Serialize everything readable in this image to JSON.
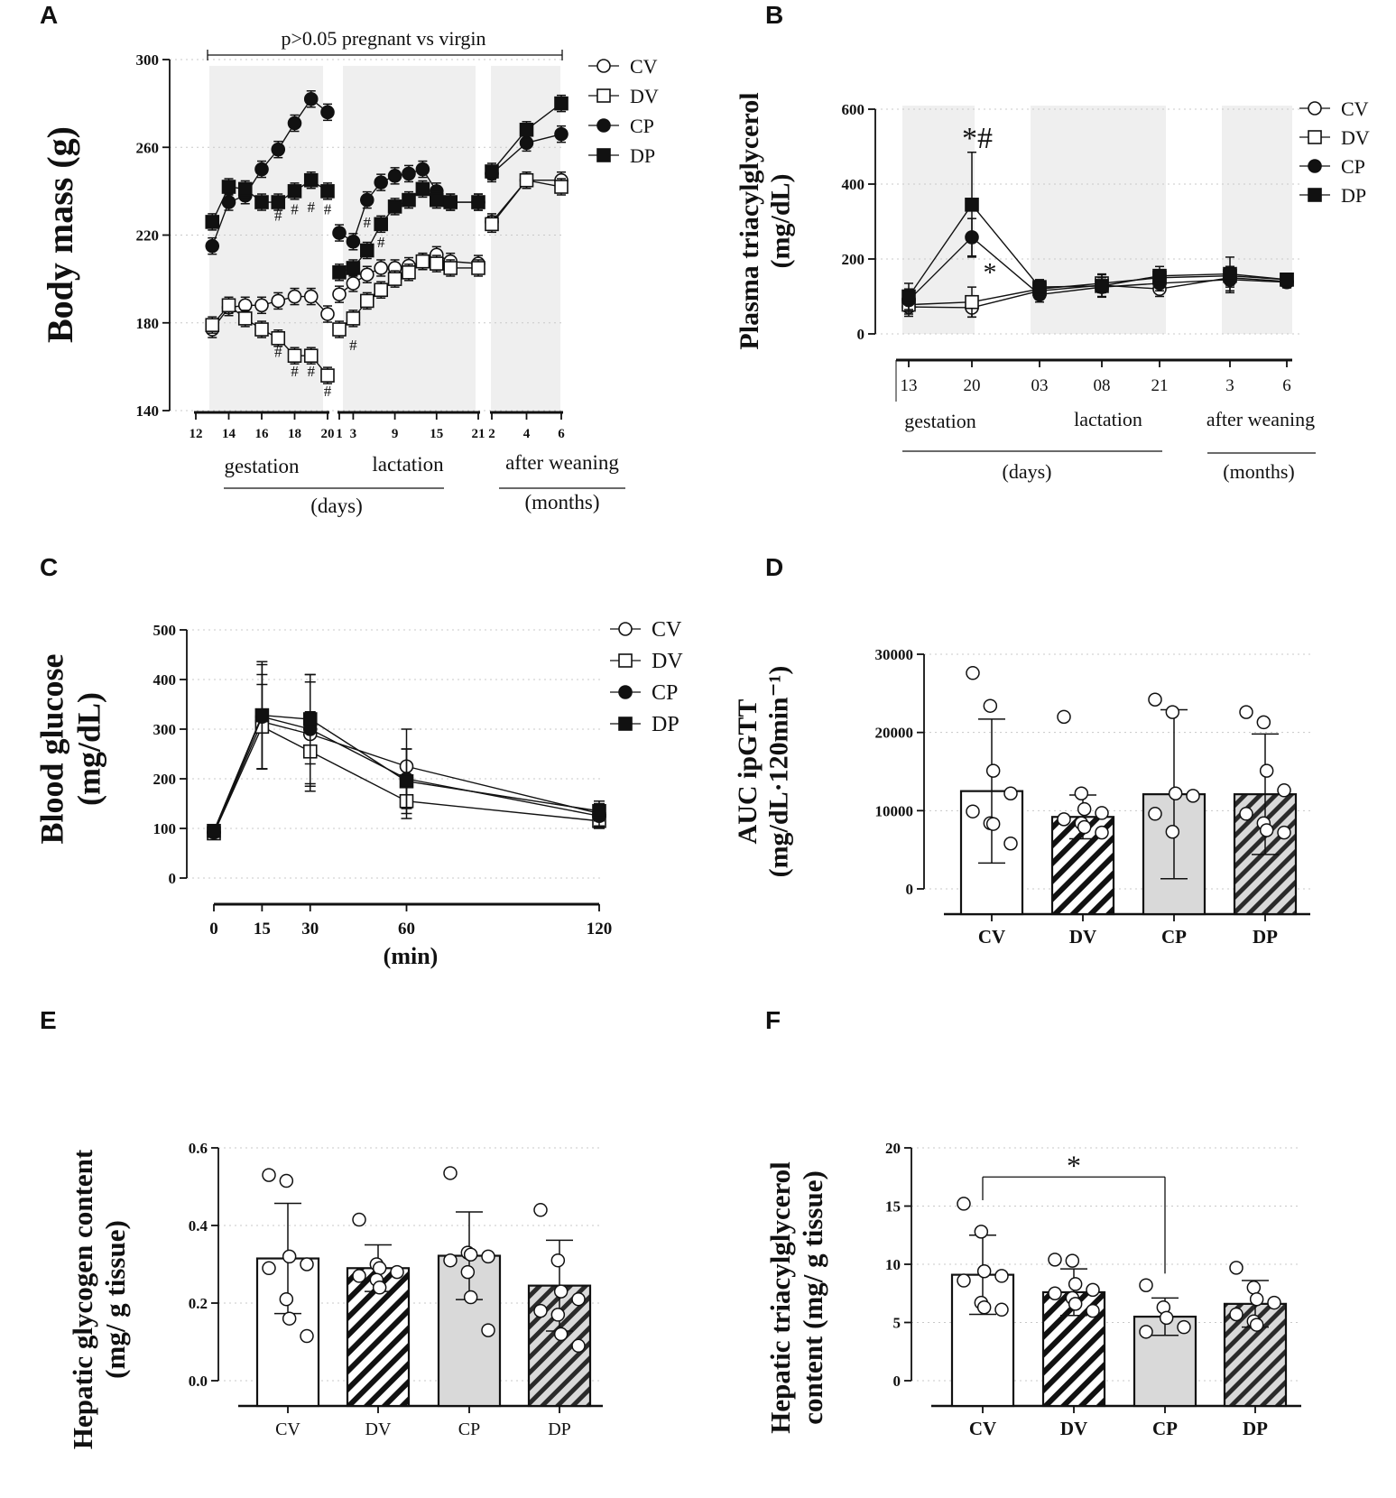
{
  "figure": {
    "panels": [
      {
        "letter": "A"
      },
      {
        "letter": "B"
      },
      {
        "letter": "C"
      },
      {
        "letter": "D"
      },
      {
        "letter": "E"
      },
      {
        "letter": "F"
      }
    ]
  },
  "chart_data": [
    {
      "id": "A",
      "type": "line",
      "ylabel": "Body mass (g)",
      "ylim": [
        140,
        300
      ],
      "yticks": [
        140,
        180,
        220,
        260,
        300
      ],
      "annotation": "p>0.05 pregnant vs virgin",
      "legend": [
        "CV",
        "DV",
        "CP",
        "DP"
      ],
      "segments": [
        {
          "label": "gestation",
          "ticks": [
            12,
            14,
            16,
            18,
            20
          ]
        },
        {
          "label": "lactation",
          "ticks": [
            1,
            3,
            9,
            15,
            21
          ]
        },
        {
          "label": "after weaning",
          "ticks": [
            2,
            4,
            6
          ]
        }
      ],
      "unit_days": "(days)",
      "unit_months": "(months)",
      "series": [
        {
          "name": "CV",
          "marker": "open-circle",
          "gestation": [
            [
              13,
              177
            ],
            [
              14,
              187
            ],
            [
              15,
              188
            ],
            [
              16,
              188
            ],
            [
              17,
              190
            ],
            [
              18,
              192
            ],
            [
              19,
              192
            ],
            [
              20,
              184
            ]
          ],
          "lactation": [
            [
              1,
              193
            ],
            [
              3,
              198
            ],
            [
              5,
              202
            ],
            [
              7,
              205
            ],
            [
              9,
              205
            ],
            [
              11,
              206
            ],
            [
              13,
              208
            ],
            [
              15,
              211
            ],
            [
              17,
              208
            ],
            [
              21,
              207
            ]
          ],
          "weaning": [
            [
              2,
              226
            ],
            [
              4,
              245
            ],
            [
              6,
              245
            ]
          ]
        },
        {
          "name": "DV",
          "marker": "open-square",
          "gestation": [
            [
              13,
              179
            ],
            [
              14,
              188
            ],
            [
              15,
              182
            ],
            [
              16,
              177
            ],
            [
              17,
              173
            ],
            [
              18,
              165
            ],
            [
              19,
              165
            ],
            [
              20,
              156
            ]
          ],
          "lactation": [
            [
              1,
              177
            ],
            [
              3,
              182
            ],
            [
              5,
              190
            ],
            [
              7,
              195
            ],
            [
              9,
              200
            ],
            [
              11,
              203
            ],
            [
              13,
              208
            ],
            [
              15,
              207
            ],
            [
              17,
              205
            ],
            [
              21,
              205
            ]
          ],
          "weaning": [
            [
              2,
              225
            ],
            [
              4,
              245
            ],
            [
              6,
              242
            ]
          ]
        },
        {
          "name": "CP",
          "marker": "filled-circle",
          "gestation": [
            [
              13,
              215
            ],
            [
              14,
              235
            ],
            [
              15,
              238
            ],
            [
              16,
              250
            ],
            [
              17,
              259
            ],
            [
              18,
              271
            ],
            [
              19,
              282
            ],
            [
              20,
              276
            ]
          ],
          "lactation": [
            [
              1,
              221
            ],
            [
              3,
              217
            ],
            [
              5,
              236
            ],
            [
              7,
              244
            ],
            [
              9,
              247
            ],
            [
              11,
              248
            ],
            [
              13,
              250
            ],
            [
              15,
              240
            ],
            [
              17,
              235
            ],
            [
              21,
              235
            ]
          ],
          "weaning": [
            [
              2,
              248
            ],
            [
              4,
              262
            ],
            [
              6,
              266
            ]
          ]
        },
        {
          "name": "DP",
          "marker": "filled-square",
          "gestation": [
            [
              13,
              226
            ],
            [
              14,
              242
            ],
            [
              15,
              241
            ],
            [
              16,
              235
            ],
            [
              17,
              235
            ],
            [
              18,
              240
            ],
            [
              19,
              245
            ],
            [
              20,
              240
            ]
          ],
          "lactation": [
            [
              1,
              203
            ],
            [
              3,
              205
            ],
            [
              5,
              213
            ],
            [
              7,
              225
            ],
            [
              9,
              233
            ],
            [
              11,
              236
            ],
            [
              13,
              241
            ],
            [
              15,
              236
            ],
            [
              17,
              235
            ],
            [
              21,
              235
            ]
          ],
          "weaning": [
            [
              2,
              249
            ],
            [
              4,
              268
            ],
            [
              6,
              280
            ]
          ]
        }
      ],
      "significance": [
        {
          "symbol": "#",
          "segment": "gestation",
          "x": 17,
          "y": 229
        },
        {
          "symbol": "#",
          "segment": "gestation",
          "x": 18,
          "y": 232
        },
        {
          "symbol": "#",
          "segment": "gestation",
          "x": 19,
          "y": 233
        },
        {
          "symbol": "#",
          "segment": "gestation",
          "x": 20,
          "y": 232
        },
        {
          "symbol": "#",
          "segment": "gestation",
          "x": 17,
          "y": 167
        },
        {
          "symbol": "#",
          "segment": "gestation",
          "x": 18,
          "y": 158
        },
        {
          "symbol": "#",
          "segment": "gestation",
          "x": 19,
          "y": 158
        },
        {
          "symbol": "#",
          "segment": "gestation",
          "x": 20,
          "y": 149
        },
        {
          "symbol": "#",
          "segment": "lactation",
          "x": 5,
          "y": 226
        },
        {
          "symbol": "#",
          "segment": "lactation",
          "x": 7,
          "y": 217
        },
        {
          "symbol": "#",
          "segment": "lactation",
          "x": 3,
          "y": 170
        }
      ]
    },
    {
      "id": "B",
      "type": "line",
      "ylabel_line1": "Plasma triacylglycerol",
      "ylabel_line2": "(mg/dL)",
      "ylim": [
        0,
        600
      ],
      "yticks": [
        0,
        200,
        400,
        600
      ],
      "categories": [
        "13",
        "20",
        "03",
        "08",
        "21",
        "3",
        "6"
      ],
      "groups": [
        {
          "label": "gestation"
        },
        {
          "label": "lactation"
        },
        {
          "label": "after weaning"
        }
      ],
      "unit_days": "(days)",
      "unit_months": "(months)",
      "legend": [
        "CV",
        "DV",
        "CP",
        "DP"
      ],
      "series": [
        {
          "name": "CV",
          "marker": "open-circle",
          "values": [
            72,
            70,
            115,
            130,
            120,
            150,
            140
          ],
          "err": [
            25,
            25,
            20,
            20,
            20,
            25,
            15
          ]
        },
        {
          "name": "DV",
          "marker": "open-square",
          "values": [
            78,
            85,
            120,
            135,
            150,
            155,
            145
          ],
          "err": [
            25,
            40,
            20,
            25,
            20,
            25,
            15
          ]
        },
        {
          "name": "CP",
          "marker": "filled-circle",
          "values": [
            90,
            258,
            105,
            125,
            135,
            145,
            138
          ],
          "err": [
            30,
            50,
            20,
            25,
            20,
            35,
            15
          ]
        },
        {
          "name": "DP",
          "marker": "filled-square",
          "values": [
            100,
            345,
            125,
            128,
            155,
            160,
            145
          ],
          "err": [
            35,
            140,
            20,
            30,
            25,
            45,
            15
          ]
        }
      ],
      "significance": [
        {
          "symbol": "*#",
          "category": "20",
          "y": 530
        },
        {
          "symbol": "*",
          "category": "20",
          "y": 175
        }
      ]
    },
    {
      "id": "C",
      "type": "line",
      "ylabel_line1": "Blood glucose",
      "ylabel_line2": "(mg/dL)",
      "xlabel": "(min)",
      "ylim": [
        0,
        500
      ],
      "yticks": [
        0,
        100,
        200,
        300,
        400,
        500
      ],
      "x": [
        0,
        15,
        30,
        60,
        120
      ],
      "legend": [
        "CV",
        "DV",
        "CP",
        "DP"
      ],
      "series": [
        {
          "name": "CV",
          "marker": "open-circle",
          "values": [
            92,
            315,
            290,
            225,
            130
          ],
          "err": [
            10,
            95,
            105,
            75,
            20
          ]
        },
        {
          "name": "DV",
          "marker": "open-square",
          "values": [
            90,
            305,
            255,
            155,
            115
          ],
          "err": [
            10,
            85,
            80,
            35,
            15
          ]
        },
        {
          "name": "CP",
          "marker": "filled-circle",
          "values": [
            92,
            325,
            300,
            200,
            125
          ],
          "err": [
            10,
            105,
            110,
            60,
            20
          ]
        },
        {
          "name": "DP",
          "marker": "filled-square",
          "values": [
            95,
            328,
            320,
            195,
            135
          ],
          "err": [
            10,
            108,
            90,
            65,
            20
          ]
        }
      ]
    },
    {
      "id": "D",
      "type": "bar",
      "ylabel_line1": "AUC ipGTT",
      "ylabel_line2": "(mg/dL·120min⁻¹)",
      "ylim": [
        0,
        30000
      ],
      "yticks": [
        0,
        10000,
        20000,
        30000
      ],
      "categories": [
        "CV",
        "DV",
        "CP",
        "DP"
      ],
      "values": [
        12500,
        9200,
        12100,
        12100
      ],
      "err": [
        9200,
        2800,
        10800,
        7700
      ],
      "points": [
        [
          27600,
          23400,
          15100,
          12200,
          9900,
          8400,
          8300,
          5800
        ],
        [
          22000,
          12200,
          10200,
          9700,
          8900,
          8400,
          7900,
          7200
        ],
        [
          24200,
          22600,
          12200,
          11900,
          9600,
          7300
        ],
        [
          22600,
          21300,
          15100,
          12600,
          9600,
          8400,
          7500,
          7200
        ]
      ],
      "fills": [
        "white",
        "hatch",
        "grey",
        "grey-hatch"
      ]
    },
    {
      "id": "E",
      "type": "bar",
      "ylabel_line1": "Hepatic glycogen content",
      "ylabel_line2": "(mg/ g tissue)",
      "ylim": [
        0,
        0.6
      ],
      "yticks": [
        "0.0",
        "0.2",
        "0.4",
        "0.6"
      ],
      "categories": [
        "CV",
        "DV",
        "CP",
        "DP"
      ],
      "values": [
        0.315,
        0.29,
        0.322,
        0.245
      ],
      "err": [
        0.142,
        0.06,
        0.113,
        0.117
      ],
      "points": [
        [
          0.53,
          0.515,
          0.32,
          0.3,
          0.29,
          0.21,
          0.16,
          0.115
        ],
        [
          0.415,
          0.3,
          0.29,
          0.28,
          0.27,
          0.26,
          0.24
        ],
        [
          0.535,
          0.33,
          0.325,
          0.32,
          0.31,
          0.28,
          0.215,
          0.13
        ],
        [
          0.44,
          0.31,
          0.23,
          0.21,
          0.18,
          0.17,
          0.12,
          0.09
        ]
      ],
      "fills": [
        "white",
        "hatch",
        "grey",
        "grey-hatch"
      ]
    },
    {
      "id": "F",
      "type": "bar",
      "ylabel_line1": "Hepatic triacylglycerol",
      "ylabel_line2": "content (mg/ g tissue)",
      "ylim": [
        0,
        20
      ],
      "yticks": [
        0,
        5,
        10,
        15,
        20
      ],
      "categories": [
        "CV",
        "DV",
        "CP",
        "DP"
      ],
      "values": [
        9.1,
        7.6,
        5.5,
        6.6
      ],
      "err": [
        3.4,
        2.0,
        1.6,
        2.0
      ],
      "points": [
        [
          15.2,
          12.8,
          9.4,
          9.0,
          8.6,
          6.7,
          6.3,
          6.1
        ],
        [
          10.4,
          10.3,
          8.3,
          7.8,
          7.5,
          7.1,
          6.6,
          6.0
        ],
        [
          8.2,
          6.3,
          5.4,
          4.6,
          4.2
        ],
        [
          9.7,
          8.0,
          7.0,
          6.7,
          5.7,
          5.1,
          4.8
        ]
      ],
      "fills": [
        "white",
        "hatch",
        "grey",
        "grey-hatch"
      ],
      "comparison": {
        "from": "CV",
        "to": "CP",
        "y": 17.5,
        "symbol": "*"
      }
    }
  ]
}
